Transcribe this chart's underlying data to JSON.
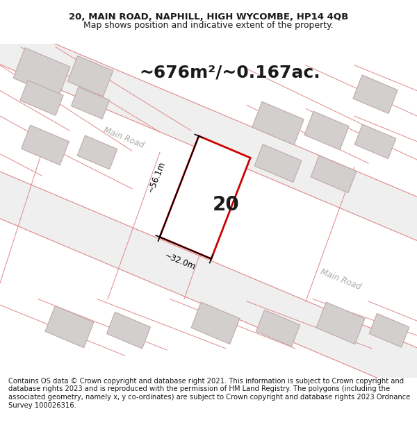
{
  "title_line1": "20, MAIN ROAD, NAPHILL, HIGH WYCOMBE, HP14 4QB",
  "title_line2": "Map shows position and indicative extent of the property.",
  "area_text": "~676m²/~0.167ac.",
  "number_label": "20",
  "dim_vertical": "~56.1m",
  "dim_horizontal": "~32.0m",
  "road_label1": "Main Road",
  "road_label2": "Main Road",
  "footer_text": "Contains OS data © Crown copyright and database right 2021. This information is subject to Crown copyright and database rights 2023 and is reproduced with the permission of HM Land Registry. The polygons (including the associated geometry, namely x, y co-ordinates) are subject to Crown copyright and database rights 2023 Ordnance Survey 100026316.",
  "bg_color": "#ffffff",
  "map_bg_color": "#f7f2f2",
  "road_fill": "#efefef",
  "building_fill": "#d4cfcf",
  "building_stroke": "#c0a8a8",
  "road_line_color": "#e08888",
  "highlight_poly_color": "#cc0000",
  "road_label_color": "#aaaaaa",
  "dim_color": "#000000",
  "text_color": "#1a1a1a",
  "footer_fontsize": 7.2,
  "title_fontsize": 9.5,
  "area_fontsize": 18,
  "number_fontsize": 20,
  "dim_fontsize": 8.5
}
